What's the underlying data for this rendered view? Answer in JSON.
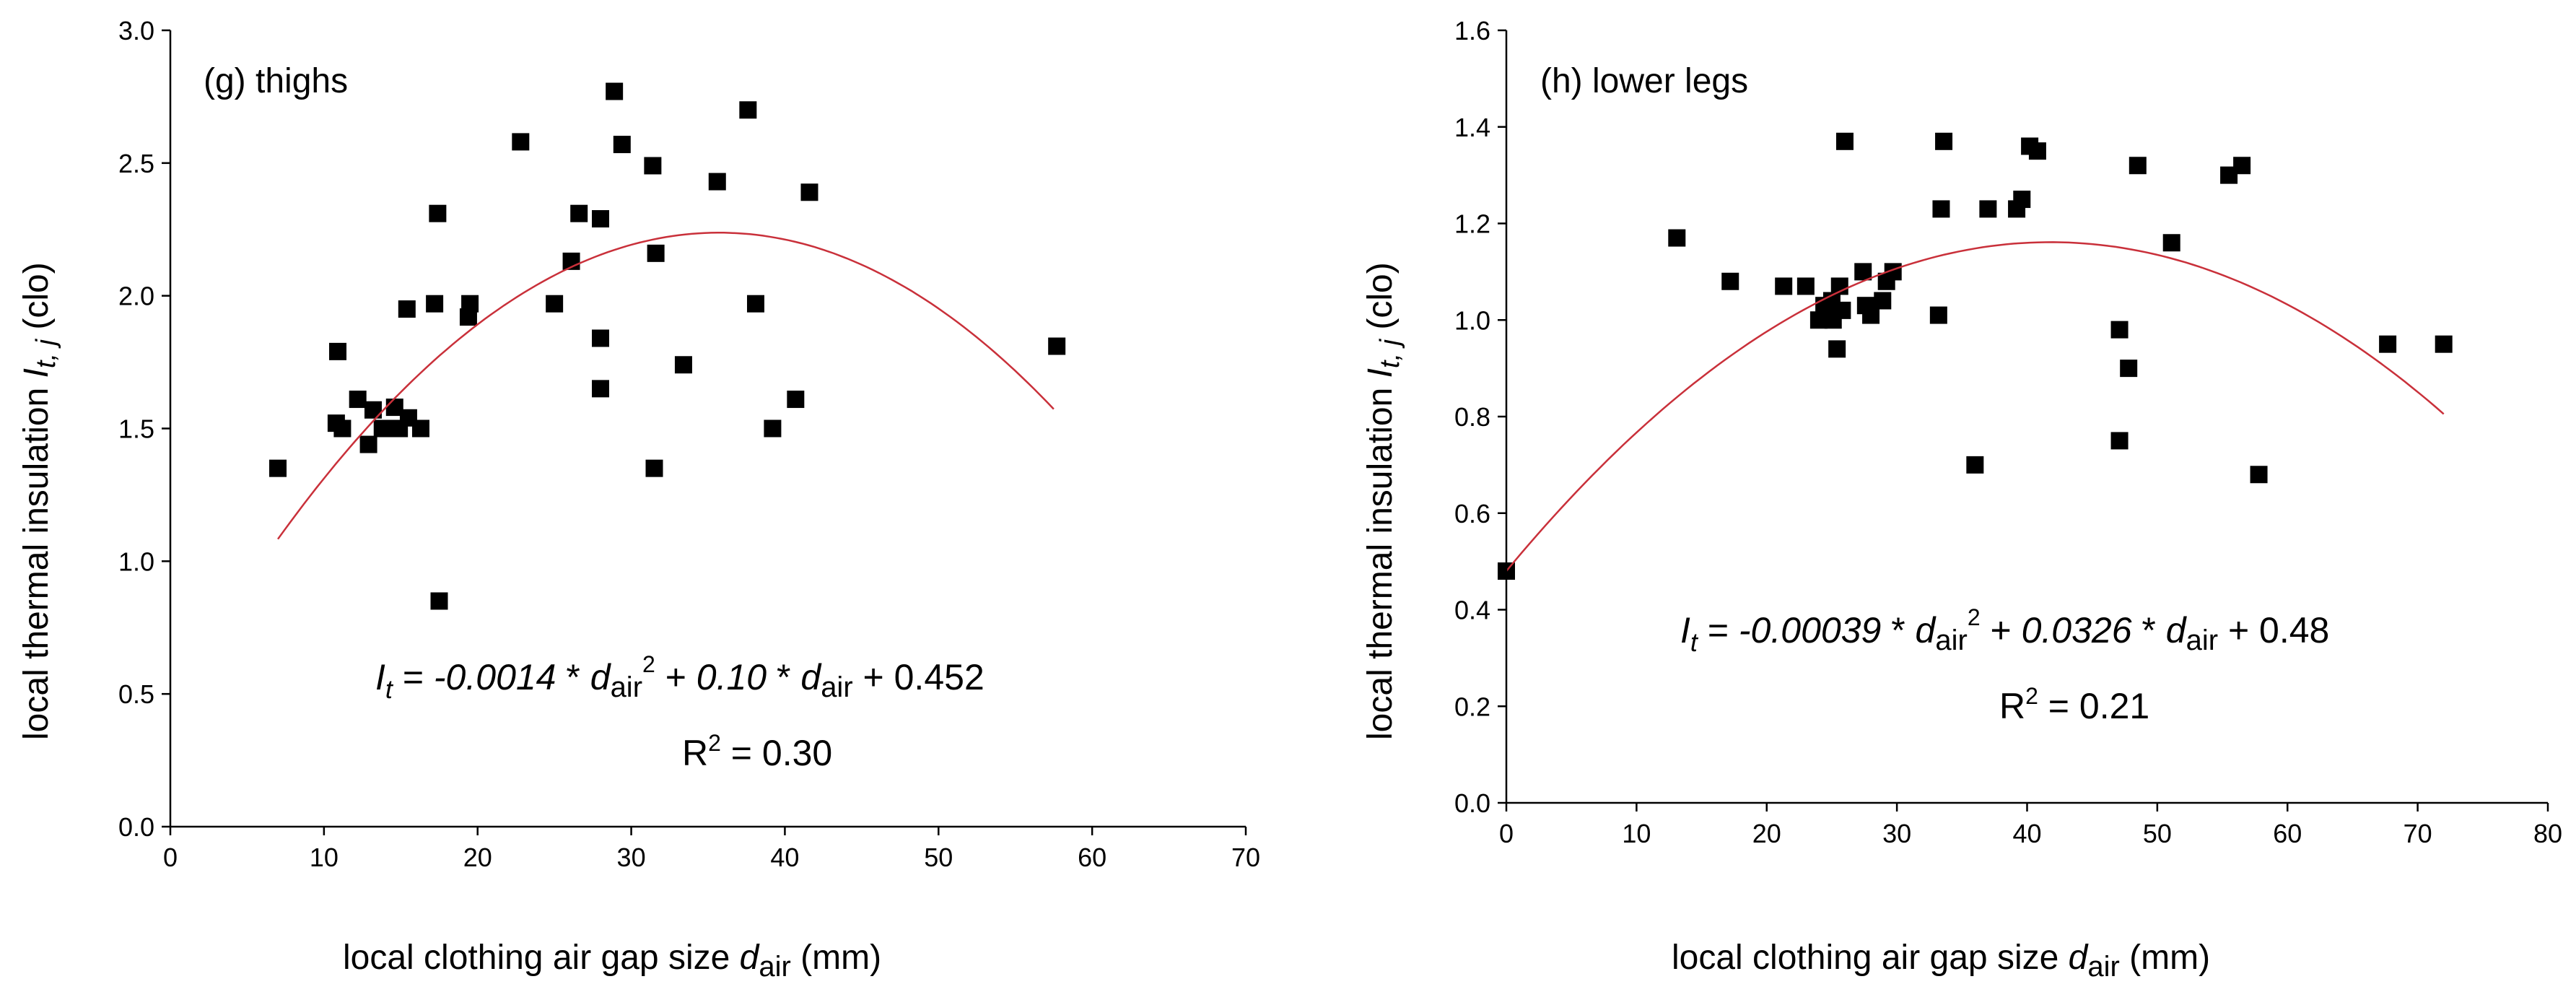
{
  "chart_data": [
    {
      "type": "scatter",
      "panel_label": "(g) thighs",
      "xlim": [
        0,
        70
      ],
      "ylim": [
        0,
        3.0
      ],
      "xticks": [
        0,
        10,
        20,
        30,
        40,
        50,
        60,
        70
      ],
      "yticks": [
        0.0,
        0.5,
        1.0,
        1.5,
        2.0,
        2.5,
        3.0
      ],
      "xlabel": {
        "main": "local clothing air gap size ",
        "var": "d",
        "sub": "air",
        "unit": " (mm)"
      },
      "ylabel": {
        "main": "local thermal insulation ",
        "var": "I",
        "sub": "t, j",
        "unit": " (clo)"
      },
      "points": [
        [
          7.0,
          1.35
        ],
        [
          10.8,
          1.52
        ],
        [
          10.9,
          1.79
        ],
        [
          11.2,
          1.5
        ],
        [
          12.2,
          1.61
        ],
        [
          12.9,
          1.44
        ],
        [
          13.2,
          1.57
        ],
        [
          13.8,
          1.5
        ],
        [
          14.6,
          1.58
        ],
        [
          14.9,
          1.5
        ],
        [
          15.4,
          1.95
        ],
        [
          15.5,
          1.54
        ],
        [
          16.3,
          1.5
        ],
        [
          17.2,
          1.97
        ],
        [
          17.4,
          2.31
        ],
        [
          17.5,
          0.85
        ],
        [
          19.4,
          1.92
        ],
        [
          19.5,
          1.97
        ],
        [
          22.8,
          2.58
        ],
        [
          25.0,
          1.97
        ],
        [
          26.1,
          2.13
        ],
        [
          26.6,
          2.31
        ],
        [
          28.0,
          2.29
        ],
        [
          28.0,
          1.84
        ],
        [
          28.0,
          1.65
        ],
        [
          28.9,
          2.77
        ],
        [
          29.4,
          2.57
        ],
        [
          31.4,
          2.49
        ],
        [
          31.6,
          2.16
        ],
        [
          31.5,
          1.35
        ],
        [
          33.4,
          1.74
        ],
        [
          35.6,
          2.43
        ],
        [
          37.6,
          2.7
        ],
        [
          38.1,
          1.97
        ],
        [
          39.2,
          1.5
        ],
        [
          40.7,
          1.61
        ],
        [
          41.6,
          2.39
        ],
        [
          57.7,
          1.81
        ]
      ],
      "fit": {
        "a": -0.0014,
        "b": 0.1,
        "c": 0.452,
        "x_range": [
          7,
          57.5
        ]
      },
      "equation": {
        "lhs": "I",
        "lhs_sub": "t",
        "eq": " = ",
        "t1": "-0.0014",
        "t2": " * ",
        "v1": "d",
        "v1_sub": "air",
        "v1_sup": "2",
        "t3": " + ",
        "t4": "0.10",
        "t5": " * ",
        "v2": "d",
        "v2_sub": "air",
        "t6": " + 0.452"
      },
      "r2": {
        "label": "R",
        "sup": "2",
        "value": " = 0.30"
      }
    },
    {
      "type": "scatter",
      "panel_label": "(h) lower legs",
      "xlim": [
        0,
        80
      ],
      "ylim": [
        0,
        1.6
      ],
      "xticks": [
        0,
        10,
        20,
        30,
        40,
        50,
        60,
        70,
        80
      ],
      "yticks": [
        0.0,
        0.2,
        0.4,
        0.6,
        0.8,
        1.0,
        1.2,
        1.4,
        1.6
      ],
      "xlabel": {
        "main": "local clothing air gap size ",
        "var": "d",
        "sub": "air",
        "unit": " (mm)"
      },
      "ylabel": {
        "main": "local thermal insulation ",
        "var": "I",
        "sub": "t, j",
        "unit": " (clo)"
      },
      "points": [
        [
          0.0,
          0.48
        ],
        [
          13.1,
          1.17
        ],
        [
          17.2,
          1.08
        ],
        [
          21.3,
          1.07
        ],
        [
          23.0,
          1.07
        ],
        [
          24.0,
          1.0
        ],
        [
          24.4,
          1.03
        ],
        [
          24.7,
          1.01
        ],
        [
          25.0,
          1.04
        ],
        [
          25.1,
          1.0
        ],
        [
          25.4,
          0.94
        ],
        [
          25.6,
          1.07
        ],
        [
          25.8,
          1.02
        ],
        [
          26.0,
          1.37
        ],
        [
          27.4,
          1.1
        ],
        [
          27.6,
          1.03
        ],
        [
          28.0,
          1.01
        ],
        [
          28.9,
          1.04
        ],
        [
          29.2,
          1.08
        ],
        [
          29.7,
          1.1
        ],
        [
          33.4,
          1.23
        ],
        [
          33.6,
          1.37
        ],
        [
          33.2,
          1.01
        ],
        [
          36.0,
          0.7
        ],
        [
          37.0,
          1.23
        ],
        [
          39.2,
          1.23
        ],
        [
          39.6,
          1.25
        ],
        [
          40.2,
          1.36
        ],
        [
          40.8,
          1.35
        ],
        [
          47.1,
          0.98
        ],
        [
          47.1,
          0.75
        ],
        [
          47.8,
          0.9
        ],
        [
          48.5,
          1.32
        ],
        [
          51.1,
          1.16
        ],
        [
          55.5,
          1.3
        ],
        [
          56.5,
          1.32
        ],
        [
          57.8,
          0.68
        ],
        [
          67.7,
          0.95
        ],
        [
          72.0,
          0.95
        ]
      ],
      "fit": {
        "a": -0.00039,
        "b": 0.0326,
        "c": 0.48,
        "x_range": [
          0,
          72
        ]
      },
      "equation": {
        "lhs": "I",
        "lhs_sub": "t",
        "eq": " = ",
        "t1": "-0.00039",
        "t2": " * ",
        "v1": "d",
        "v1_sub": "air",
        "v1_sup": "2",
        "t3": " + ",
        "t4": "0.0326",
        "t5": " * ",
        "v2": "d",
        "v2_sub": "air",
        "t6": " + 0.48"
      },
      "r2": {
        "label": "R",
        "sup": "2",
        "value": " = 0.21"
      }
    }
  ]
}
